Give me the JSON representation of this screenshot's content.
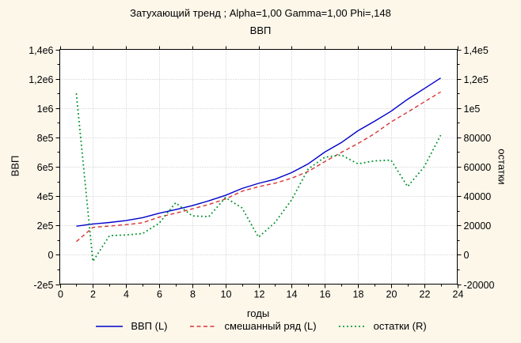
{
  "title": "Затухающий тренд ; Alpha=1,00 Gamma=1,00 Phi=,148",
  "subtitle": "ВВП",
  "colors": {
    "page_bg": "#fdf7ea",
    "plot_bg": "#ffffff",
    "grid": "#c4c4c4",
    "axis": "#000000",
    "text": "#000000"
  },
  "chart_data": {
    "type": "line",
    "x_years": [
      1,
      2,
      3,
      4,
      5,
      6,
      7,
      8,
      9,
      10,
      11,
      12,
      13,
      14,
      15,
      16,
      17,
      18,
      19,
      20,
      21,
      22,
      23
    ],
    "xlabel": "годы",
    "xlim": [
      0,
      24
    ],
    "x_tick_values": [
      0,
      2,
      4,
      6,
      8,
      10,
      12,
      14,
      16,
      18,
      20,
      22,
      24
    ],
    "x_minor_tick_values": [
      1,
      3,
      5,
      7,
      9,
      11,
      13,
      15,
      17,
      19,
      21,
      23
    ],
    "grid": true,
    "legend_position": "bottom",
    "left_axis": {
      "label": "ВВП",
      "lim": [
        -200000,
        1400000
      ],
      "tick_values": [
        -200000,
        0,
        200000,
        400000,
        600000,
        800000,
        1000000,
        1200000,
        1400000
      ],
      "tick_labels": [
        "-2e5",
        "0",
        "2e5",
        "4e5",
        "6e5",
        "8e5",
        "1e6",
        "1,2e6",
        "1,4e6"
      ]
    },
    "right_axis": {
      "label": "остатки",
      "lim": [
        -20000,
        140000
      ],
      "tick_values": [
        -20000,
        0,
        20000,
        40000,
        60000,
        80000,
        100000,
        120000,
        140000
      ],
      "tick_labels": [
        "-20000",
        "0",
        "20000",
        "40000",
        "60000",
        "80000",
        "1e5",
        "1,2e5",
        "1,4e5"
      ]
    },
    "gridline_values_left": [
      0,
      200000,
      400000,
      600000,
      800000,
      1000000,
      1200000
    ],
    "series": [
      {
        "name": "ВВП (L)",
        "axis": "left",
        "line_style": "solid",
        "color": "#0000cc",
        "values": [
          195000,
          210000,
          220000,
          233000,
          253000,
          283000,
          308000,
          335000,
          368000,
          405000,
          452000,
          487000,
          515000,
          560000,
          620000,
          700000,
          765000,
          845000,
          910000,
          978000,
          1060000,
          1132000,
          1205000
        ]
      },
      {
        "name": "смешанный ряд (L)",
        "axis": "left",
        "line_style": "dashed",
        "color": "#d83434",
        "values": [
          90000,
          187000,
          196000,
          205000,
          218000,
          257000,
          284000,
          313000,
          343000,
          380000,
          433000,
          464000,
          488000,
          522000,
          568000,
          635000,
          698000,
          758000,
          825000,
          905000,
          972000,
          1042000,
          1110000
        ]
      },
      {
        "name": "остатки (R)",
        "axis": "right",
        "line_style": "dotted",
        "color": "#00932b",
        "values": [
          110000,
          -4500,
          13000,
          13500,
          14500,
          21500,
          35500,
          26500,
          26000,
          39000,
          32000,
          12000,
          22000,
          37500,
          58500,
          66500,
          68000,
          62000,
          64000,
          64500,
          46500,
          60000,
          81500
        ]
      }
    ]
  }
}
